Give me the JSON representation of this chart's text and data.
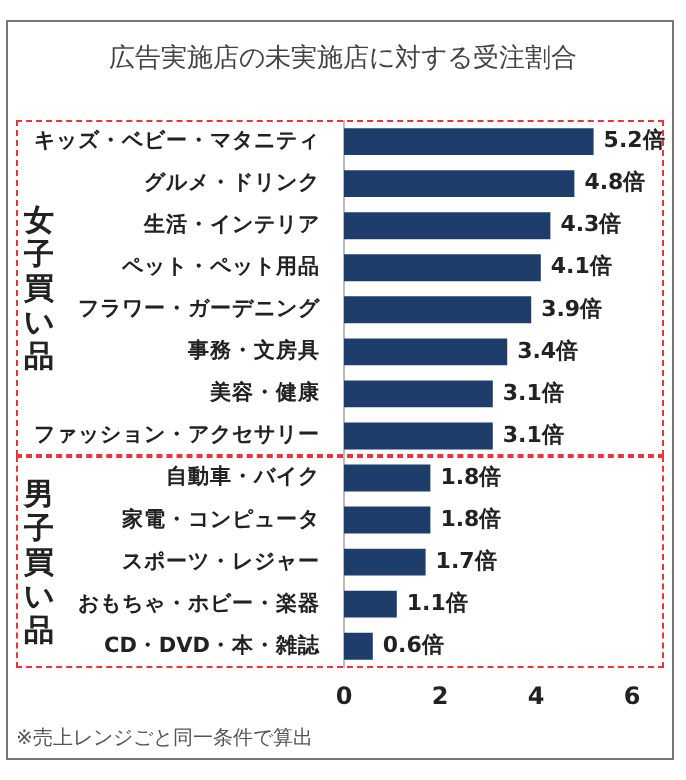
{
  "chart_data": {
    "type": "bar",
    "orientation": "horizontal",
    "title": "広告実施店の未実施店に対する受注割合",
    "categories": [
      "キッズ・ベビー・マタニティ",
      "グルメ・ドリンク",
      "生活・インテリア",
      "ペット・ペット用品",
      "フラワー・ガーデニング",
      "事務・文房具",
      "美容・健康",
      "ファッション・アクセサリー",
      "自動車・バイク",
      "家電・コンピュータ",
      "スポーツ・レジャー",
      "おもちゃ・ホビー・楽器",
      "CD・DVD・本・雑誌"
    ],
    "values": [
      5.2,
      4.8,
      4.3,
      4.1,
      3.9,
      3.4,
      3.1,
      3.1,
      1.8,
      1.8,
      1.7,
      1.1,
      0.6
    ],
    "value_labels": [
      "5.2倍",
      "4.8倍",
      "4.3倍",
      "4.1倍",
      "3.9倍",
      "3.4倍",
      "3.1倍",
      "3.1倍",
      "1.8倍",
      "1.8倍",
      "1.7倍",
      "1.1倍",
      "0.6倍"
    ],
    "color": "#1f3d6b",
    "xlim": [
      0,
      7
    ],
    "xticks": [
      0,
      2,
      4,
      6
    ],
    "annotations": [
      "女子買い品",
      "男子買い品",
      "※売上レンジごと同一条件で算出"
    ]
  }
}
